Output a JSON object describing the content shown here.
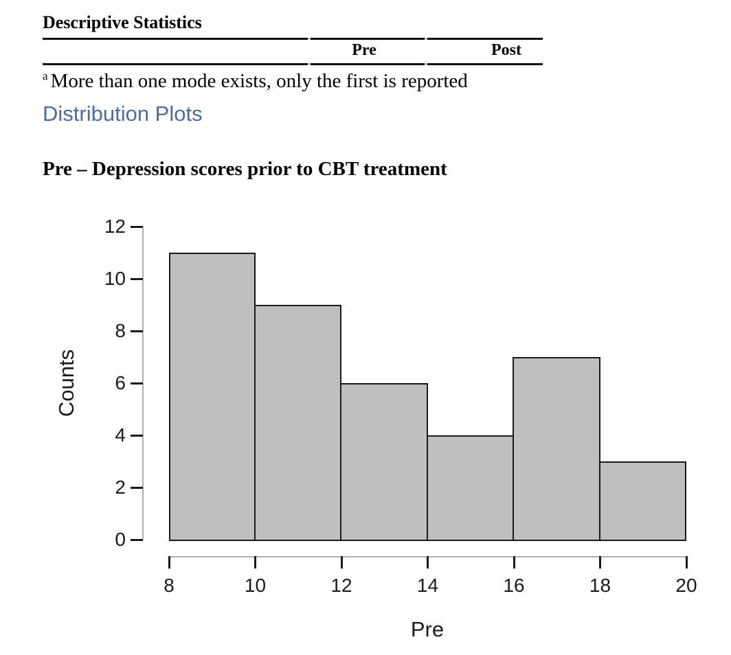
{
  "table": {
    "title": "Descriptive Statistics",
    "col_pre": "Pre",
    "col_post": "Post",
    "footnote_marker": "a",
    "footnote": "More than one mode exists, only the first is reported"
  },
  "links": {
    "distribution_plots": "Distribution Plots"
  },
  "plot_section": {
    "title": "Pre – Depression scores prior to CBT treatment"
  },
  "chart_data": {
    "type": "bar",
    "subtype": "histogram",
    "title": "Pre – Depression scores prior to CBT treatment",
    "xlabel": "Pre",
    "ylabel": "Counts",
    "bin_edges": [
      8,
      10,
      12,
      14,
      16,
      18,
      20
    ],
    "counts": [
      11,
      9,
      6,
      4,
      7,
      3
    ],
    "xticks": [
      8,
      10,
      12,
      14,
      16,
      18,
      20
    ],
    "yticks": [
      0,
      2,
      4,
      6,
      8,
      10,
      12
    ],
    "xlim": [
      8,
      20
    ],
    "ylim": [
      0,
      12
    ],
    "grid": false,
    "legend": "none",
    "bar_fill": "#bfbfbf",
    "bar_border": "#1a1a1a",
    "axis_color": "#b0b0b0",
    "text_color": "#1a1a1a"
  },
  "colors": {
    "link_blue": "#4a6c9a",
    "rule_black": "#0d0d0d",
    "background": "#ffffff"
  }
}
